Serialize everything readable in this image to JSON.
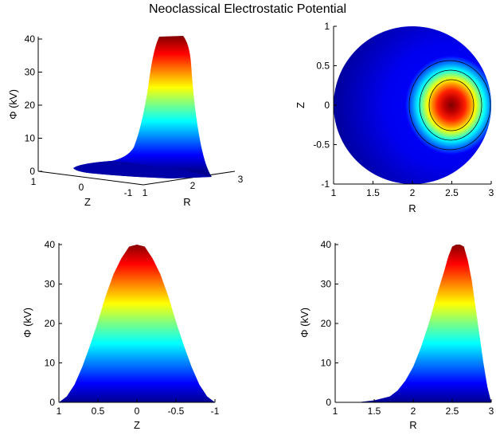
{
  "figure_title": "Neoclassical Electrostatic Potential",
  "colormap": [
    "#00008f",
    "#0000ff",
    "#0080ff",
    "#00ffff",
    "#80ff80",
    "#ffff00",
    "#ff8000",
    "#ff0000",
    "#800000"
  ],
  "chart_data": [
    {
      "type": "surface3d",
      "zlabel": "Φ (kV)",
      "xlabel": "Z",
      "ylabel": "R",
      "zticks": [
        "0",
        "10",
        "20",
        "30",
        "40"
      ],
      "xticks": [
        "1",
        "0",
        "-1"
      ],
      "yticks": [
        "1",
        "2",
        "3"
      ],
      "zlim": [
        0,
        40
      ]
    },
    {
      "type": "heatmap",
      "xlabel": "R",
      "ylabel": "Z",
      "xlim": [
        1,
        3
      ],
      "ylim": [
        -1,
        1
      ],
      "xticks": [
        "1",
        "1.5",
        "2",
        "2.5",
        "3"
      ],
      "yticks": [
        "-1",
        "-0.5",
        "0",
        "0.5",
        "1"
      ],
      "peak": {
        "R": 2.55,
        "Z": 0,
        "value": 40
      },
      "contour_levels": [
        10,
        20,
        30
      ]
    },
    {
      "type": "area",
      "xlabel": "Z",
      "ylabel": "Φ (kV)",
      "xlim": [
        1,
        -1
      ],
      "ylim": [
        0,
        40
      ],
      "xticks": [
        "1",
        "0.5",
        "0",
        "-0.5",
        "-1"
      ],
      "yticks": [
        "0",
        "10",
        "20",
        "30",
        "40"
      ],
      "x": [
        1,
        0.9,
        0.8,
        0.7,
        0.6,
        0.5,
        0.4,
        0.3,
        0.2,
        0.1,
        0,
        -0.1,
        -0.2,
        -0.3,
        -0.4,
        -0.5,
        -0.6,
        -0.7,
        -0.8,
        -0.9,
        -1
      ],
      "y": [
        0,
        1.5,
        4.5,
        9,
        14.5,
        20.5,
        27,
        32.5,
        36.5,
        39.5,
        40,
        39.5,
        36.5,
        32.5,
        27,
        20.5,
        14.5,
        9,
        4.5,
        1.5,
        0
      ]
    },
    {
      "type": "area",
      "xlabel": "R",
      "ylabel": "Φ (kV)",
      "xlim": [
        1,
        3
      ],
      "ylim": [
        0,
        40
      ],
      "xticks": [
        "1",
        "1.5",
        "2",
        "2.5",
        "3"
      ],
      "yticks": [
        "0",
        "10",
        "20",
        "30",
        "40"
      ],
      "x": [
        1.28,
        1.5,
        1.7,
        1.8,
        1.9,
        2.0,
        2.1,
        2.2,
        2.3,
        2.4,
        2.45,
        2.5,
        2.55,
        2.6,
        2.65,
        2.7,
        2.75,
        2.8,
        2.85,
        2.9,
        2.95,
        3.0
      ],
      "y": [
        0,
        0.5,
        1.5,
        3,
        5.5,
        9,
        14,
        20,
        27,
        33.5,
        37,
        39.5,
        40,
        40,
        39.5,
        36,
        31,
        24,
        17,
        10,
        4,
        0
      ]
    }
  ]
}
